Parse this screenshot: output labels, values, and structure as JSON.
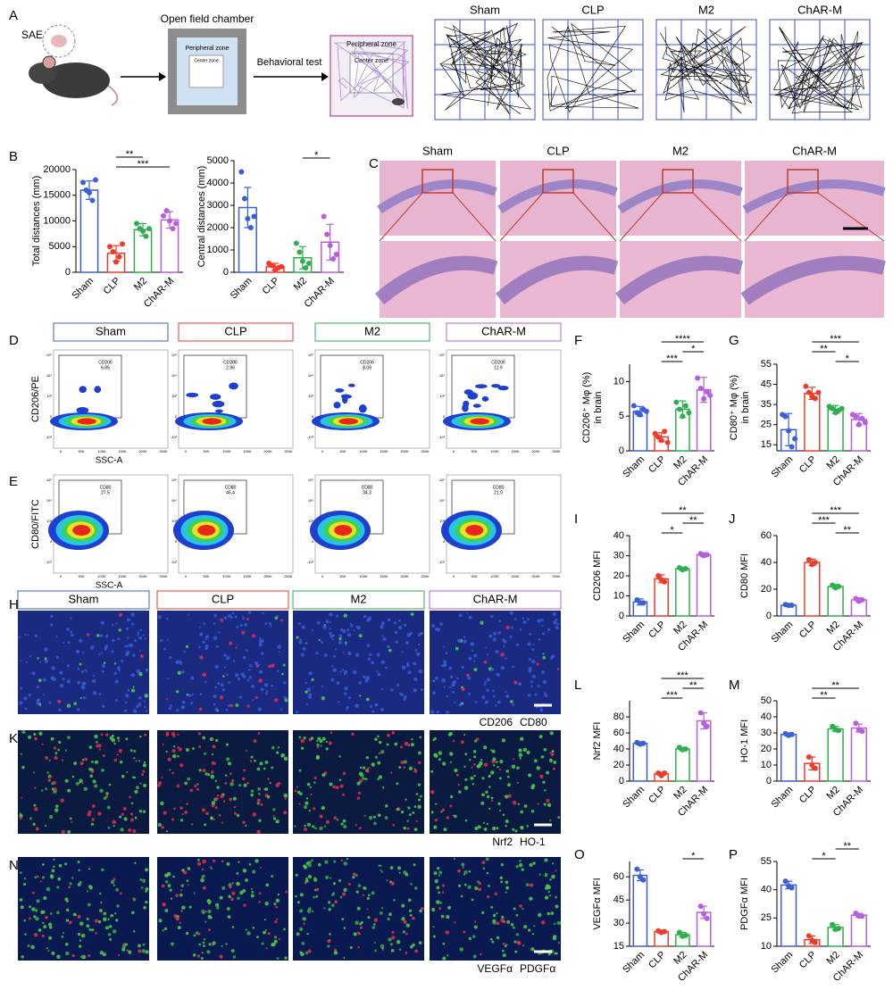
{
  "panel_labels": [
    "A",
    "B",
    "C",
    "D",
    "E",
    "F",
    "G",
    "H",
    "I",
    "J",
    "K",
    "L",
    "M",
    "N",
    "O",
    "P"
  ],
  "groups": [
    "Sham",
    "CLP",
    "M2",
    "ChAR-M"
  ],
  "group_colors": [
    "#3a5fd9",
    "#ee3b2b",
    "#2fae4e",
    "#b75ee0"
  ],
  "schematic": {
    "sae": "SAE",
    "chamber_title": "Open field chamber",
    "peripheral_zone": "Peripheral zone",
    "center_zone": "Center zone",
    "arrow_label": "Behavioral test",
    "peripheral_zone_2": "Peripheral zone",
    "center_zone_2": "Center zone"
  },
  "flow": {
    "x_ticks": [
      "0",
      "50K",
      "100K",
      "150K",
      "200K",
      "250K"
    ],
    "y_ticks": [
      "10⁵",
      "10⁴",
      "10³",
      "0",
      "-10³"
    ],
    "cd206": {
      "y_label": "CD206/PE",
      "x_label": "SSC-A",
      "gate_label": "CD206",
      "gate_values": [
        "6.85",
        "2.96",
        "8.09",
        "11.9"
      ]
    },
    "cd80": {
      "y_label": "CD80/FITC",
      "x_label": "SSC-A",
      "gate_label": "CD80",
      "gate_values": [
        "27.5",
        "46.4",
        "34.3",
        "21.0"
      ]
    }
  },
  "if": {
    "rows": [
      {
        "markers": [
          "CD206",
          "CD80"
        ]
      },
      {
        "markers": [
          "Nrf2",
          "HO-1"
        ]
      },
      {
        "markers": [
          "VEGFα",
          "PDGFα"
        ]
      }
    ]
  },
  "chart_data": [
    {
      "type": "bar",
      "ylabel": "Total distances (mm)",
      "categories": [
        "Sham",
        "CLP",
        "M2",
        "ChAR-M"
      ],
      "colors": [
        "#3a5fd9",
        "#ee3b2b",
        "#2fae4e",
        "#b75ee0"
      ],
      "values": [
        16000,
        3700,
        8300,
        10200
      ],
      "errors": [
        1800,
        1500,
        1200,
        1600
      ],
      "points": [
        [
          17500,
          16000,
          15500,
          14000,
          18000
        ],
        [
          5000,
          4000,
          2000,
          3000,
          5500
        ],
        [
          9500,
          8500,
          8000,
          7000,
          8500
        ],
        [
          11000,
          12000,
          10000,
          8500,
          9500
        ]
      ],
      "ylim": [
        0,
        20000
      ],
      "yticks": [
        0,
        5000,
        10000,
        15000,
        20000
      ],
      "annotations": [
        {
          "text": "***",
          "between": [
            "CLP",
            "ChAR-M"
          ]
        },
        {
          "text": "**",
          "between": [
            "CLP",
            "M2"
          ]
        }
      ]
    },
    {
      "type": "bar",
      "ylabel": "Central distances (mm)",
      "categories": [
        "Sham",
        "CLP",
        "M2",
        "ChAR-M"
      ],
      "colors": [
        "#3a5fd9",
        "#ee3b2b",
        "#2fae4e",
        "#b75ee0"
      ],
      "values": [
        2900,
        250,
        650,
        1350
      ],
      "errors": [
        900,
        150,
        500,
        800
      ],
      "points": [
        [
          4500,
          3300,
          2400,
          2000,
          2500
        ],
        [
          400,
          300,
          100,
          200,
          250
        ],
        [
          1300,
          900,
          500,
          200,
          400
        ],
        [
          2500,
          1700,
          1200,
          600,
          800
        ]
      ],
      "ylim": [
        0,
        5000
      ],
      "yticks": [
        0,
        1000,
        2000,
        3000,
        4000,
        5000
      ],
      "annotations": [
        {
          "text": "*",
          "between": [
            "M2",
            "ChAR-M"
          ]
        }
      ]
    },
    {
      "type": "bar",
      "ylabel": [
        "CD206⁺ Mφ (%)",
        "in brain"
      ],
      "categories": [
        "Sham",
        "CLP",
        "M2",
        "ChAR-M"
      ],
      "colors": [
        "#3a5fd9",
        "#ee3b2b",
        "#2fae4e",
        "#b75ee0"
      ],
      "values": [
        5.7,
        2.0,
        6.0,
        8.8
      ],
      "errors": [
        0.7,
        0.6,
        1.2,
        1.8
      ],
      "points": [
        [
          6.5,
          5.5,
          5.2,
          6.0,
          5.7
        ],
        [
          2.5,
          2.0,
          1.5,
          2.8,
          1.2
        ],
        [
          7.0,
          6.0,
          5.0,
          6.5,
          5.5
        ],
        [
          10.5,
          9.0,
          7.5,
          8.5,
          8.0
        ]
      ],
      "ylim": [
        0,
        12.5
      ],
      "yticks": [
        0,
        5,
        10
      ],
      "annotations": [
        {
          "text": "***",
          "between": [
            "CLP",
            "M2"
          ]
        },
        {
          "text": "*",
          "between": [
            "M2",
            "ChAR-M"
          ]
        },
        {
          "text": "****",
          "between": [
            "CLP",
            "ChAR-M"
          ]
        }
      ]
    },
    {
      "type": "bar",
      "ylabel": [
        "CD80⁺ Mφ (%)",
        "in brain"
      ],
      "categories": [
        "Sham",
        "CLP",
        "M2",
        "ChAR-M"
      ],
      "colors": [
        "#3a5fd9",
        "#ee3b2b",
        "#2fae4e",
        "#b75ee0"
      ],
      "values": [
        22.5,
        40.5,
        32.5,
        27.5
      ],
      "errors": [
        8,
        3,
        2,
        3
      ],
      "points": [
        [
          30,
          29,
          22,
          14,
          18
        ],
        [
          44,
          41,
          39,
          38,
          41
        ],
        [
          34,
          33,
          31,
          32,
          33
        ],
        [
          30,
          29,
          25,
          28,
          26
        ]
      ],
      "ylim": [
        12,
        55
      ],
      "yticks": [
        15,
        25,
        35,
        45,
        55
      ],
      "annotations": [
        {
          "text": "*",
          "between": [
            "M2",
            "ChAR-M"
          ]
        },
        {
          "text": "**",
          "between": [
            "CLP",
            "M2"
          ]
        },
        {
          "text": "***",
          "between": [
            "CLP",
            "ChAR-M"
          ]
        }
      ]
    },
    {
      "type": "bar",
      "ylabel": "CD206 MFI",
      "categories": [
        "Sham",
        "CLP",
        "M2",
        "ChAR-M"
      ],
      "colors": [
        "#3a5fd9",
        "#ee3b2b",
        "#2fae4e",
        "#b75ee0"
      ],
      "values": [
        7,
        18.5,
        23.5,
        30.5
      ],
      "errors": [
        1.5,
        2,
        0.8,
        1
      ],
      "points": [
        [
          8,
          6.5,
          6.5
        ],
        [
          20,
          18,
          17
        ],
        [
          24,
          23,
          23.5
        ],
        [
          31,
          30,
          30.5
        ]
      ],
      "ylim": [
        0,
        40
      ],
      "yticks": [
        0,
        10,
        20,
        30,
        40
      ],
      "annotations": [
        {
          "text": "*",
          "between": [
            "CLP",
            "M2"
          ]
        },
        {
          "text": "**",
          "between": [
            "M2",
            "ChAR-M"
          ]
        },
        {
          "text": "**",
          "between": [
            "CLP",
            "ChAR-M"
          ]
        }
      ]
    },
    {
      "type": "bar",
      "ylabel": "CD80 MFI",
      "categories": [
        "Sham",
        "CLP",
        "M2",
        "ChAR-M"
      ],
      "colors": [
        "#3a5fd9",
        "#ee3b2b",
        "#2fae4e",
        "#b75ee0"
      ],
      "values": [
        8,
        40,
        22,
        12
      ],
      "errors": [
        0.7,
        2.5,
        1.5,
        1.5
      ],
      "points": [
        [
          8.5,
          7.8,
          8
        ],
        [
          42,
          38.5,
          40
        ],
        [
          23,
          21,
          22
        ],
        [
          13,
          11,
          12
        ]
      ],
      "ylim": [
        0,
        60
      ],
      "yticks": [
        0,
        20,
        40,
        60
      ],
      "annotations": [
        {
          "text": "**",
          "between": [
            "M2",
            "ChAR-M"
          ]
        },
        {
          "text": "***",
          "between": [
            "CLP",
            "M2"
          ]
        },
        {
          "text": "***",
          "between": [
            "CLP",
            "ChAR-M"
          ]
        }
      ]
    },
    {
      "type": "bar",
      "ylabel": "Nrf2 MFI",
      "categories": [
        "Sham",
        "CLP",
        "M2",
        "ChAR-M"
      ],
      "colors": [
        "#3a5fd9",
        "#ee3b2b",
        "#2fae4e",
        "#b75ee0"
      ],
      "values": [
        47,
        9,
        40,
        75
      ],
      "errors": [
        2,
        2,
        2,
        10
      ],
      "points": [
        [
          48,
          46,
          47
        ],
        [
          10,
          7,
          10
        ],
        [
          42,
          39,
          40
        ],
        [
          85,
          72,
          68
        ]
      ],
      "ylim": [
        0,
        100
      ],
      "yticks": [
        0,
        20,
        40,
        60,
        80
      ],
      "annotations": [
        {
          "text": "***",
          "between": [
            "CLP",
            "M2"
          ]
        },
        {
          "text": "**",
          "between": [
            "M2",
            "ChAR-M"
          ]
        },
        {
          "text": "***",
          "between": [
            "CLP",
            "ChAR-M"
          ]
        }
      ]
    },
    {
      "type": "bar",
      "ylabel": "HO-1 MFI",
      "categories": [
        "Sham",
        "CLP",
        "M2",
        "ChAR-M"
      ],
      "colors": [
        "#3a5fd9",
        "#ee3b2b",
        "#2fae4e",
        "#b75ee0"
      ],
      "values": [
        29,
        11,
        32.5,
        33
      ],
      "errors": [
        1,
        4,
        1.5,
        2.5
      ],
      "points": [
        [
          29.5,
          28.5,
          29
        ],
        [
          15,
          10,
          8
        ],
        [
          34,
          32,
          31.5
        ],
        [
          36,
          32,
          31
        ]
      ],
      "ylim": [
        0,
        50
      ],
      "yticks": [
        0,
        10,
        20,
        30,
        40,
        50
      ],
      "annotations": [
        {
          "text": "**",
          "between": [
            "CLP",
            "M2"
          ]
        },
        {
          "text": "**",
          "between": [
            "CLP",
            "ChAR-M"
          ]
        }
      ]
    },
    {
      "type": "bar",
      "ylabel": "VEGFα MFI",
      "categories": [
        "Sham",
        "CLP",
        "M2",
        "ChAR-M"
      ],
      "colors": [
        "#3a5fd9",
        "#ee3b2b",
        "#2fae4e",
        "#b75ee0"
      ],
      "values": [
        61,
        24.5,
        22.5,
        37
      ],
      "errors": [
        3.5,
        1,
        1.5,
        4
      ],
      "points": [
        [
          65,
          60,
          58
        ],
        [
          25,
          24,
          24.5
        ],
        [
          24,
          21.5,
          22
        ],
        [
          41,
          36,
          33
        ]
      ],
      "ylim": [
        15,
        70
      ],
      "yticks": [
        15,
        30,
        45,
        60
      ],
      "annotations": [
        {
          "text": "*",
          "between": [
            "M2",
            "ChAR-M"
          ]
        }
      ]
    },
    {
      "type": "bar",
      "ylabel": "PDGFα MFI",
      "categories": [
        "Sham",
        "CLP",
        "M2",
        "ChAR-M"
      ],
      "colors": [
        "#3a5fd9",
        "#ee3b2b",
        "#2fae4e",
        "#b75ee0"
      ],
      "values": [
        42.5,
        13.5,
        20,
        26.5
      ],
      "errors": [
        2,
        2,
        1.5,
        1
      ],
      "points": [
        [
          44.5,
          42,
          41
        ],
        [
          15.5,
          13,
          12
        ],
        [
          21.5,
          19,
          19.5
        ],
        [
          27.5,
          26,
          26
        ]
      ],
      "ylim": [
        10,
        55
      ],
      "yticks": [
        10,
        25,
        40,
        55
      ],
      "annotations": [
        {
          "text": "*",
          "between": [
            "CLP",
            "M2"
          ]
        },
        {
          "text": "**",
          "between": [
            "M2",
            "ChAR-M"
          ]
        }
      ]
    }
  ]
}
